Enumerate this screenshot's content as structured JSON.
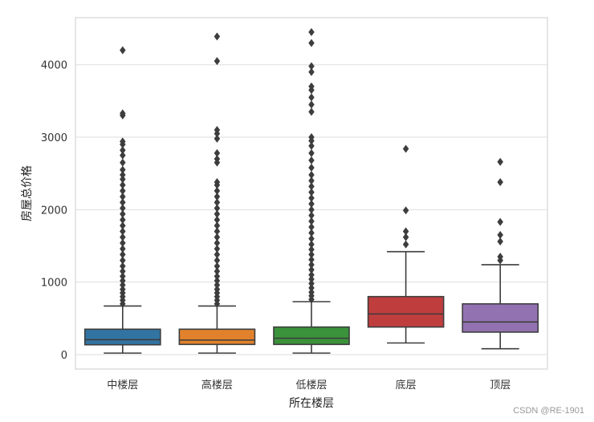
{
  "chart_data": {
    "type": "box",
    "xlabel": "所在楼层",
    "ylabel": "房屋总价格",
    "ylim": [
      -200,
      4650
    ],
    "yticks": [
      0,
      1000,
      2000,
      3000,
      4000
    ],
    "grid": "horizontal",
    "categories": [
      "中楼层",
      "高楼层",
      "低楼层",
      "底层",
      "顶层"
    ],
    "colors": [
      "#3274a1",
      "#e1812c",
      "#3a923a",
      "#c03d3e",
      "#9372b2"
    ],
    "boxes": [
      {
        "category": "中楼层",
        "whisker_low": 20,
        "q1": 135,
        "median": 205,
        "q3": 350,
        "whisker_high": 670,
        "outliers": [
          700,
          750,
          800,
          850,
          900,
          960,
          1020,
          1080,
          1150,
          1220,
          1300,
          1380,
          1460,
          1540,
          1620,
          1700,
          1780,
          1860,
          1940,
          2020,
          2100,
          2180,
          2260,
          2340,
          2420,
          2480,
          2550,
          2650,
          2750,
          2820,
          2900,
          2940,
          3300,
          3330,
          4200
        ]
      },
      {
        "category": "高楼层",
        "whisker_low": 20,
        "q1": 140,
        "median": 200,
        "q3": 350,
        "whisker_high": 670,
        "outliers": [
          700,
          750,
          800,
          850,
          900,
          960,
          1020,
          1080,
          1150,
          1220,
          1300,
          1380,
          1460,
          1540,
          1620,
          1700,
          1780,
          1860,
          1940,
          2020,
          2100,
          2180,
          2260,
          2340,
          2380,
          2650,
          2700,
          2780,
          2980,
          3050,
          3100,
          4050,
          4390
        ]
      },
      {
        "category": "低楼层",
        "whisker_low": 20,
        "q1": 140,
        "median": 225,
        "q3": 380,
        "whisker_high": 730,
        "outliers": [
          760,
          810,
          860,
          920,
          980,
          1040,
          1100,
          1170,
          1240,
          1310,
          1380,
          1450,
          1520,
          1600,
          1680,
          1760,
          1840,
          1920,
          2000,
          2080,
          2160,
          2240,
          2320,
          2400,
          2480,
          2580,
          2680,
          2780,
          2880,
          2950,
          3000,
          3350,
          3450,
          3550,
          3650,
          3700,
          3900,
          3980,
          4300,
          4450
        ]
      },
      {
        "category": "底层",
        "whisker_low": 160,
        "q1": 380,
        "median": 560,
        "q3": 800,
        "whisker_high": 1420,
        "outliers": [
          1520,
          1620,
          1700,
          1990,
          2840
        ]
      },
      {
        "category": "顶层",
        "whisker_low": 80,
        "q1": 310,
        "median": 450,
        "q3": 700,
        "whisker_high": 1240,
        "outliers": [
          1300,
          1350,
          1560,
          1650,
          1830,
          2380,
          2660
        ]
      }
    ]
  },
  "watermark": "CSDN @RE-1901"
}
